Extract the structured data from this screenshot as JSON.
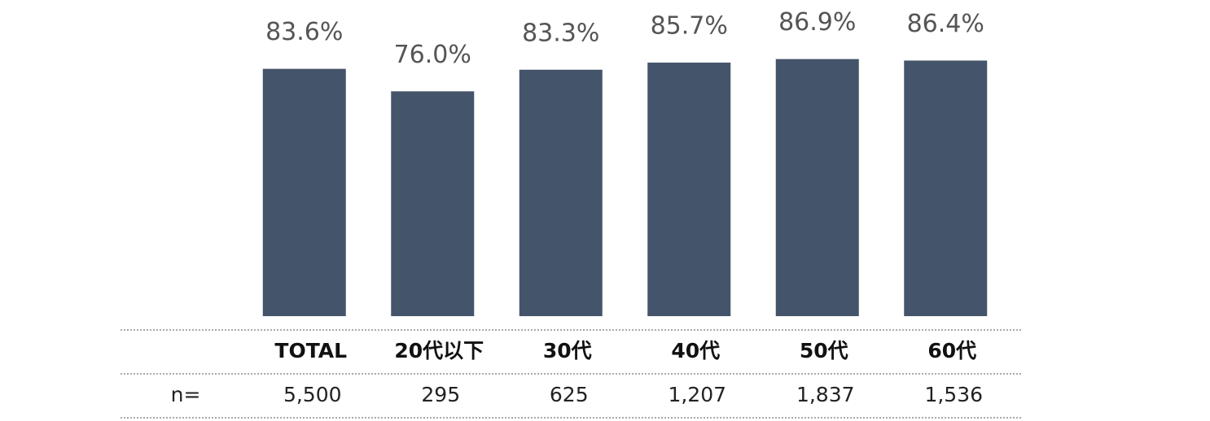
{
  "chart_data": {
    "type": "bar",
    "categories": [
      "TOTAL",
      "20代以下",
      "30代",
      "40代",
      "50代",
      "60代"
    ],
    "values": [
      83.6,
      76.0,
      83.3,
      85.7,
      86.9,
      86.4
    ],
    "value_labels": [
      "83.6%",
      "76.0%",
      "83.3%",
      "85.7%",
      "86.9%",
      "86.4%"
    ],
    "color": "#44546a",
    "ylim": [
      0,
      100
    ],
    "n_label": "n=",
    "n_values": [
      "5,500",
      "295",
      "625",
      "1,207",
      "1,837",
      "1,536"
    ]
  }
}
